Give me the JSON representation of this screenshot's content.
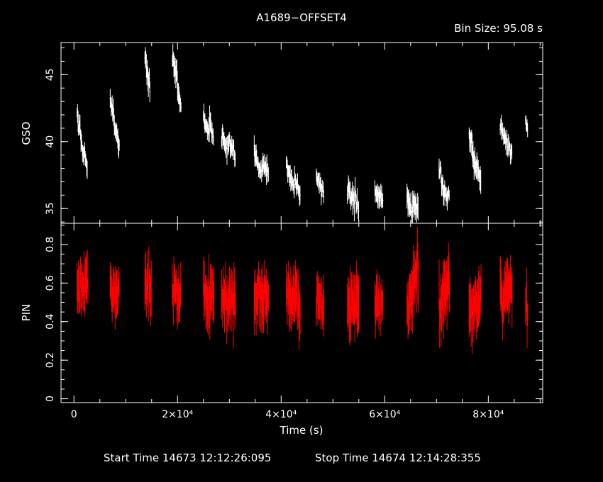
{
  "chart_data": {
    "type": "scatter",
    "title": "A1689−OFFSET4",
    "bin_size_label": "Bin Size:  95.08  s",
    "xlabel": "Time (s)",
    "xlim": [
      -2500,
      90500
    ],
    "x_ticks": [
      {
        "value": 0,
        "label": "0"
      },
      {
        "value": 20000,
        "label": "2×10⁴"
      },
      {
        "value": 40000,
        "label": "4×10⁴"
      },
      {
        "value": 60000,
        "label": "6×10⁴"
      },
      {
        "value": 80000,
        "label": "8×10⁴"
      }
    ],
    "footer": {
      "start": "Start Time 14673  12:12:26:095",
      "stop": "Stop Time 14674  12:14:28:355"
    },
    "panels": [
      {
        "name": "GSO",
        "ylabel": "GSO",
        "ylim": [
          33.9,
          47.4
        ],
        "y_ticks": [
          {
            "value": 35,
            "label": "35"
          },
          {
            "value": 40,
            "label": "40"
          },
          {
            "value": 45,
            "label": "45"
          }
        ],
        "color": "#ffffff",
        "segments": [
          [
            600,
            1800,
            42.2,
            39.0,
            0.5
          ],
          [
            1800,
            2600,
            39.5,
            38.0,
            0.5
          ],
          [
            7000,
            7800,
            43.2,
            41.5,
            0.5
          ],
          [
            7800,
            8800,
            41.5,
            39.3,
            0.5
          ],
          [
            13700,
            14700,
            46.4,
            44.0,
            0.6
          ],
          [
            19000,
            20000,
            46.6,
            44.7,
            0.6
          ],
          [
            20000,
            20700,
            43.8,
            42.6,
            0.5
          ],
          [
            25000,
            26200,
            41.8,
            40.6,
            0.5
          ],
          [
            26200,
            27000,
            41.6,
            40.4,
            0.5
          ],
          [
            28500,
            29800,
            40.4,
            39.3,
            0.5
          ],
          [
            29800,
            31200,
            39.9,
            38.7,
            0.5
          ],
          [
            34800,
            36400,
            39.2,
            37.5,
            0.5
          ],
          [
            36400,
            37600,
            38.5,
            37.6,
            0.5
          ],
          [
            41000,
            42600,
            38.1,
            36.6,
            0.5
          ],
          [
            42600,
            43700,
            37.2,
            36.0,
            0.5
          ],
          [
            46800,
            48300,
            37.3,
            36.2,
            0.5
          ],
          [
            52800,
            54200,
            36.4,
            35.3,
            0.5
          ],
          [
            54200,
            55000,
            36.0,
            35.0,
            0.5
          ],
          [
            58100,
            59700,
            36.1,
            35.5,
            0.5
          ],
          [
            64300,
            65400,
            35.8,
            34.6,
            0.6
          ],
          [
            65400,
            66500,
            35.5,
            34.9,
            0.6
          ],
          [
            70500,
            71500,
            38.4,
            36.1,
            0.5
          ],
          [
            71500,
            72500,
            36.2,
            35.7,
            0.5
          ],
          [
            76300,
            77400,
            40.6,
            38.4,
            0.6
          ],
          [
            77400,
            78600,
            38.5,
            36.9,
            0.6
          ],
          [
            82300,
            83600,
            41.3,
            39.7,
            0.5
          ],
          [
            83600,
            84600,
            39.9,
            39.1,
            0.5
          ],
          [
            87200,
            87600,
            41.6,
            41.0,
            0.4
          ]
        ]
      },
      {
        "name": "PIN",
        "ylabel": "PIN",
        "ylim": [
          -0.02,
          0.91
        ],
        "y_ticks": [
          {
            "value": 0,
            "label": "0"
          },
          {
            "value": 0.2,
            "label": "0.2"
          },
          {
            "value": 0.4,
            "label": "0.4"
          },
          {
            "value": 0.6,
            "label": "0.6"
          },
          {
            "value": 0.8,
            "label": "0.8"
          }
        ],
        "color": "#ff0000",
        "segments": [
          [
            600,
            2700,
            0.56,
            0.58,
            0.08
          ],
          [
            7000,
            8800,
            0.58,
            0.54,
            0.08
          ],
          [
            13700,
            15000,
            0.62,
            0.55,
            0.09
          ],
          [
            19000,
            20700,
            0.6,
            0.53,
            0.08
          ],
          [
            25000,
            27000,
            0.55,
            0.51,
            0.09
          ],
          [
            28500,
            31200,
            0.52,
            0.5,
            0.09
          ],
          [
            34800,
            37600,
            0.55,
            0.52,
            0.09
          ],
          [
            41000,
            43700,
            0.56,
            0.48,
            0.09
          ],
          [
            46800,
            48300,
            0.54,
            0.47,
            0.08
          ],
          [
            52800,
            55000,
            0.45,
            0.52,
            0.1
          ],
          [
            58100,
            59700,
            0.45,
            0.52,
            0.08
          ],
          [
            64300,
            66500,
            0.48,
            0.68,
            0.1
          ],
          [
            70500,
            72500,
            0.45,
            0.6,
            0.1
          ],
          [
            76300,
            78600,
            0.47,
            0.52,
            0.09
          ],
          [
            82300,
            84600,
            0.52,
            0.58,
            0.09
          ],
          [
            87200,
            87600,
            0.5,
            0.48,
            0.08
          ]
        ]
      }
    ]
  }
}
